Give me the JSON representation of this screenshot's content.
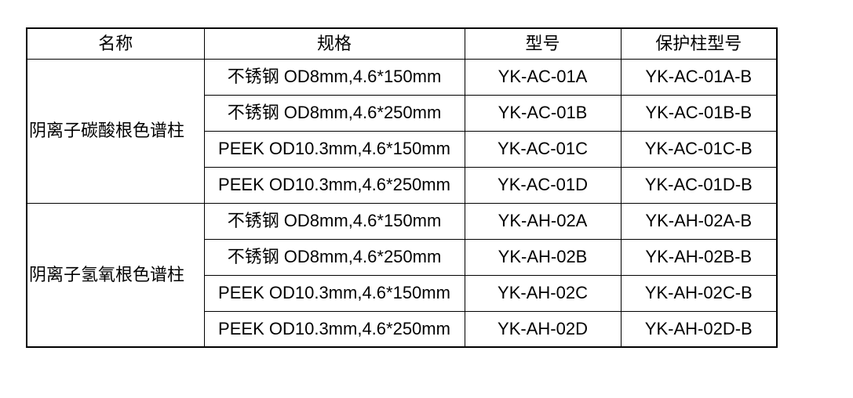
{
  "table": {
    "headers": {
      "name": "名称",
      "spec": "规格",
      "model": "型号",
      "guard": "保护柱型号"
    },
    "groups": [
      {
        "name": "阴离子碳酸根色谱柱",
        "rows": [
          {
            "spec": "不锈钢 OD8mm,4.6*150mm",
            "model": "YK-AC-01A",
            "guard": "YK-AC-01A-B"
          },
          {
            "spec": "不锈钢 OD8mm,4.6*250mm",
            "model": "YK-AC-01B",
            "guard": "YK-AC-01B-B"
          },
          {
            "spec": "PEEK OD10.3mm,4.6*150mm",
            "model": "YK-AC-01C",
            "guard": "YK-AC-01C-B"
          },
          {
            "spec": "PEEK OD10.3mm,4.6*250mm",
            "model": "YK-AC-01D",
            "guard": "YK-AC-01D-B"
          }
        ]
      },
      {
        "name": "阴离子氢氧根色谱柱",
        "rows": [
          {
            "spec": "不锈钢 OD8mm,4.6*150mm",
            "model": "YK-AH-02A",
            "guard": "YK-AH-02A-B"
          },
          {
            "spec": "不锈钢 OD8mm,4.6*250mm",
            "model": "YK-AH-02B",
            "guard": "YK-AH-02B-B"
          },
          {
            "spec": "PEEK OD10.3mm,4.6*150mm",
            "model": "YK-AH-02C",
            "guard": "YK-AH-02C-B"
          },
          {
            "spec": "PEEK OD10.3mm,4.6*250mm",
            "model": "YK-AH-02D",
            "guard": "YK-AH-02D-B"
          }
        ]
      }
    ]
  },
  "colors": {
    "border": "#000000",
    "text": "#000000",
    "background": "#ffffff"
  }
}
